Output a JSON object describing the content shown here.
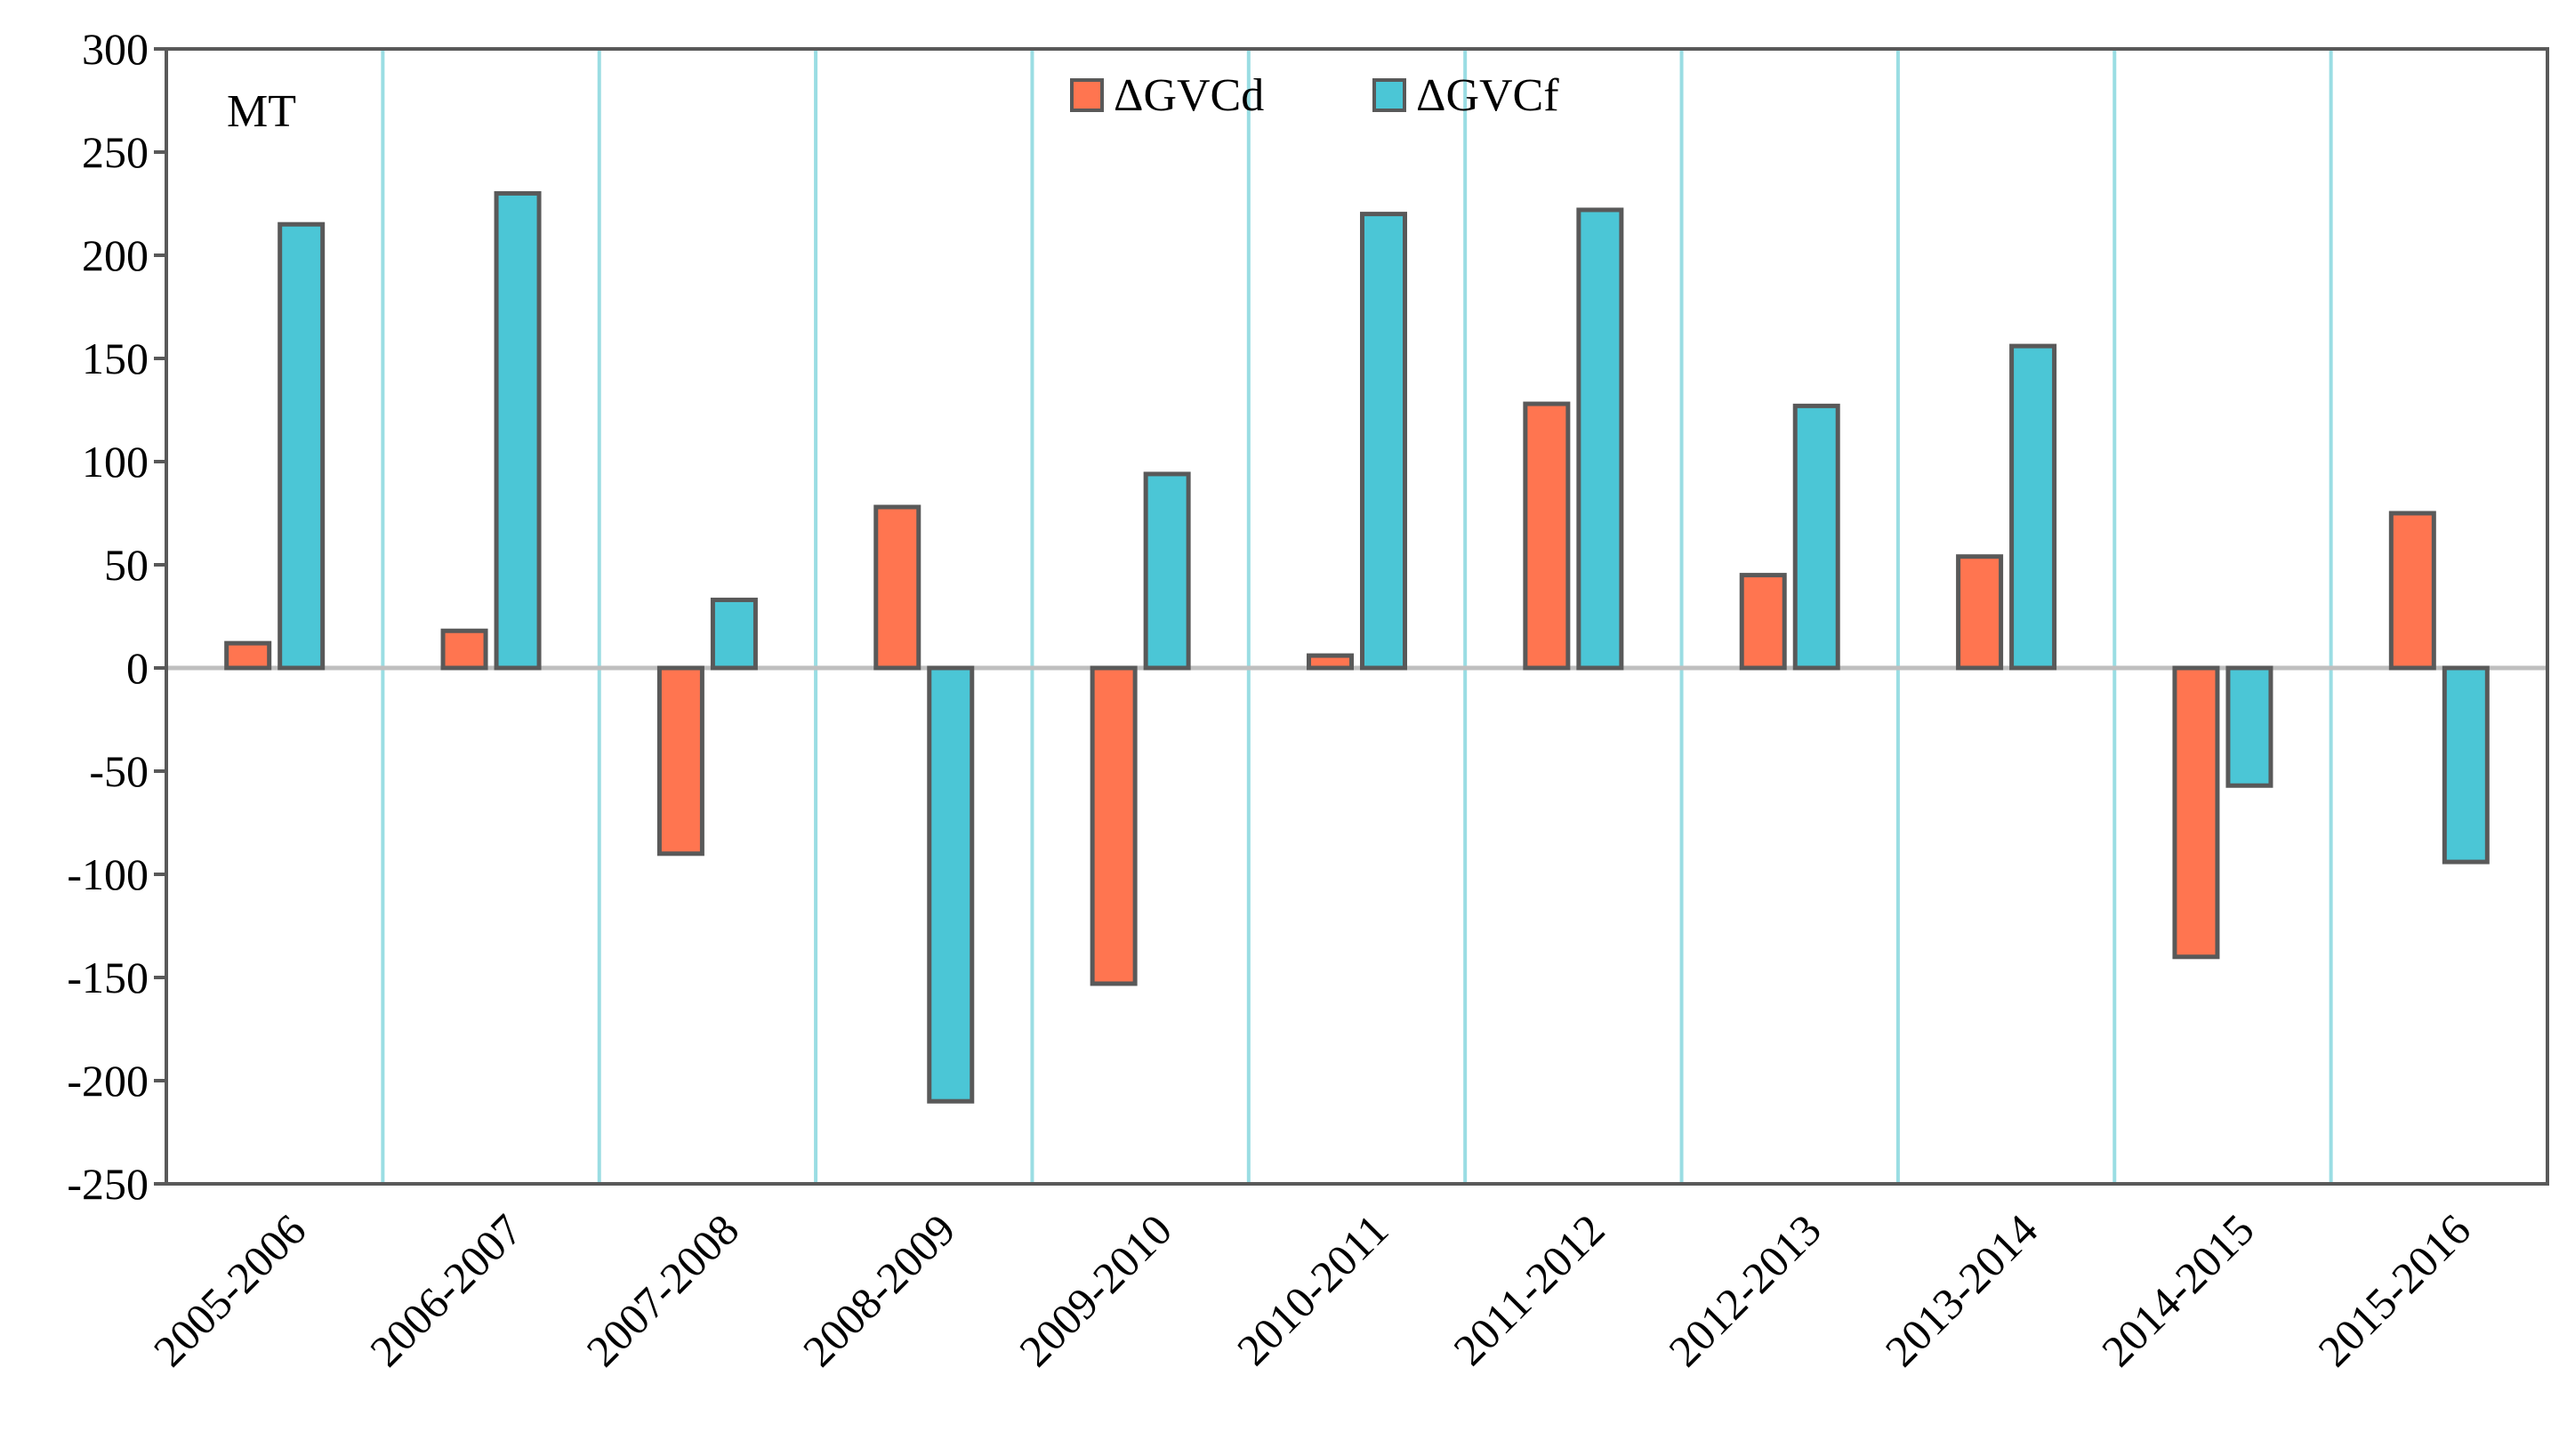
{
  "chart_data": {
    "type": "bar",
    "panel_label": "MT",
    "categories": [
      "2005-2006",
      "2006-2007",
      "2007-2008",
      "2008-2009",
      "2009-2010",
      "2010-2011",
      "2011-2012",
      "2012-2013",
      "2013-2014",
      "2014-2015",
      "2015-2016"
    ],
    "series": [
      {
        "name": "ΔGVCd",
        "color": "#FF7550",
        "values": [
          12,
          18,
          -90,
          78,
          -153,
          6,
          128,
          45,
          54,
          -140,
          75
        ]
      },
      {
        "name": "ΔGVCf",
        "color": "#4BC6D6",
        "values": [
          215,
          230,
          33,
          -210,
          94,
          220,
          222,
          127,
          156,
          -57,
          -94
        ]
      }
    ],
    "ylim": [
      -250,
      300
    ],
    "yticks": [
      300,
      250,
      200,
      150,
      100,
      50,
      0,
      -50,
      -100,
      -150,
      -200,
      -250
    ],
    "ytick_labels": [
      "300",
      "250",
      "200",
      "150",
      "100",
      "50",
      "0",
      "-50",
      "-100",
      "-150",
      "-200",
      "-250"
    ],
    "xlabel": "",
    "ylabel": "",
    "legend_position": "top-center",
    "grid": "vertical separators between categories",
    "colors": {
      "bar_outline": "#595959",
      "separator": "#9ADDE3",
      "axis": "#595959",
      "zero_line": "#BFBFBF"
    }
  }
}
